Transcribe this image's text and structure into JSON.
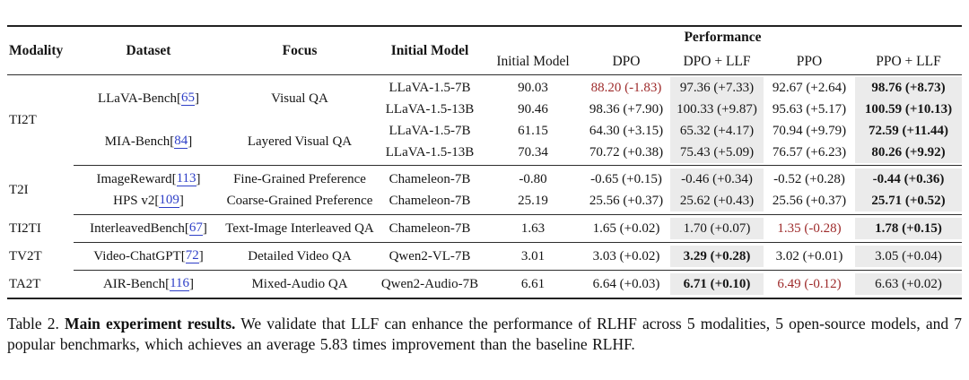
{
  "table": {
    "headers": {
      "modality": "Modality",
      "dataset": "Dataset",
      "focus": "Focus",
      "initial_model": "Initial Model",
      "performance": "Performance",
      "perf_cols": [
        "Initial Model",
        "DPO",
        "DPO + LLF",
        "PPO",
        "PPO + LLF"
      ]
    },
    "sections": [
      {
        "modality": "TI2T",
        "groups": [
          {
            "dataset": "LLaVA-Bench",
            "ref": "65",
            "focus": "Visual QA",
            "rows": [
              {
                "model": "LLaVA-1.5-7B",
                "cells": [
                  {
                    "t": "90.03"
                  },
                  {
                    "t": "88.20 (-1.83)",
                    "neg": true
                  },
                  {
                    "t": "97.36 (+7.33)"
                  },
                  {
                    "t": "92.67 (+2.64)"
                  },
                  {
                    "t": "98.76 (+8.73)",
                    "bold": true
                  }
                ]
              },
              {
                "model": "LLaVA-1.5-13B",
                "cells": [
                  {
                    "t": "90.46"
                  },
                  {
                    "t": "98.36 (+7.90)"
                  },
                  {
                    "t": "100.33 (+9.87)"
                  },
                  {
                    "t": "95.63 (+5.17)"
                  },
                  {
                    "t": "100.59 (+10.13)",
                    "bold": true
                  }
                ]
              }
            ]
          },
          {
            "dataset": "MIA-Bench",
            "ref": "84",
            "focus": "Layered Visual QA",
            "rows": [
              {
                "model": "LLaVA-1.5-7B",
                "cells": [
                  {
                    "t": "61.15"
                  },
                  {
                    "t": "64.30 (+3.15)"
                  },
                  {
                    "t": "65.32 (+4.17)"
                  },
                  {
                    "t": "70.94 (+9.79)"
                  },
                  {
                    "t": "72.59 (+11.44)",
                    "bold": true
                  }
                ]
              },
              {
                "model": "LLaVA-1.5-13B",
                "cells": [
                  {
                    "t": "70.34"
                  },
                  {
                    "t": "70.72 (+0.38)"
                  },
                  {
                    "t": "75.43 (+5.09)"
                  },
                  {
                    "t": "76.57 (+6.23)"
                  },
                  {
                    "t": "80.26 (+9.92)",
                    "bold": true
                  }
                ]
              }
            ]
          }
        ]
      },
      {
        "modality": "T2I",
        "groups": [
          {
            "dataset": "ImageReward",
            "ref": "113",
            "focus": "Fine-Grained Preference",
            "rows": [
              {
                "model": "Chameleon-7B",
                "cells": [
                  {
                    "t": "-0.80"
                  },
                  {
                    "t": "-0.65 (+0.15)"
                  },
                  {
                    "t": "-0.46 (+0.34)"
                  },
                  {
                    "t": "-0.52 (+0.28)"
                  },
                  {
                    "t": "-0.44 (+0.36)",
                    "bold": true
                  }
                ]
              }
            ]
          },
          {
            "dataset": "HPS v2",
            "ref": "109",
            "focus": "Coarse-Grained Preference",
            "rows": [
              {
                "model": "Chameleon-7B",
                "cells": [
                  {
                    "t": "25.19"
                  },
                  {
                    "t": "25.56 (+0.37)"
                  },
                  {
                    "t": "25.62 (+0.43)"
                  },
                  {
                    "t": "25.56 (+0.37)"
                  },
                  {
                    "t": "25.71 (+0.52)",
                    "bold": true
                  }
                ]
              }
            ]
          }
        ]
      },
      {
        "modality": "TI2TI",
        "groups": [
          {
            "dataset": "InterleavedBench",
            "ref": "67",
            "focus": "Text-Image Interleaved QA",
            "rows": [
              {
                "model": "Chameleon-7B",
                "cells": [
                  {
                    "t": "1.63"
                  },
                  {
                    "t": "1.65 (+0.02)"
                  },
                  {
                    "t": "1.70 (+0.07)"
                  },
                  {
                    "t": "1.35 (-0.28)",
                    "neg": true
                  },
                  {
                    "t": "1.78 (+0.15)",
                    "bold": true
                  }
                ]
              }
            ]
          }
        ]
      },
      {
        "modality": "TV2T",
        "groups": [
          {
            "dataset": "Video-ChatGPT",
            "ref": "72",
            "focus": "Detailed Video QA",
            "rows": [
              {
                "model": "Qwen2-VL-7B",
                "cells": [
                  {
                    "t": "3.01"
                  },
                  {
                    "t": "3.03 (+0.02)"
                  },
                  {
                    "t": "3.29 (+0.28)",
                    "bold": true
                  },
                  {
                    "t": "3.02 (+0.01)"
                  },
                  {
                    "t": "3.05 (+0.04)"
                  }
                ]
              }
            ]
          }
        ]
      },
      {
        "modality": "TA2T",
        "groups": [
          {
            "dataset": "AIR-Bench",
            "ref": "116",
            "focus": "Mixed-Audio QA",
            "rows": [
              {
                "model": "Qwen2-Audio-7B",
                "cells": [
                  {
                    "t": "6.61"
                  },
                  {
                    "t": "6.64 (+0.03)"
                  },
                  {
                    "t": "6.71 (+0.10)",
                    "bold": true
                  },
                  {
                    "t": "6.49 (-0.12)",
                    "neg": true
                  },
                  {
                    "t": "6.63 (+0.02)"
                  }
                ]
              }
            ]
          }
        ]
      }
    ]
  },
  "caption": {
    "label": "Table 2.",
    "title": "Main experiment results.",
    "body": "We validate that LLF can enhance the performance of RLHF across 5 modalities, 5 open-source models, and 7 popular benchmarks, which achieves an average 5.83 times improvement than the baseline RLHF."
  },
  "colors": {
    "link": "#2e3fc7",
    "negative": "#9e2b2b",
    "highlight_bg": "#ebebeb",
    "rule": "#2e2e2e"
  }
}
